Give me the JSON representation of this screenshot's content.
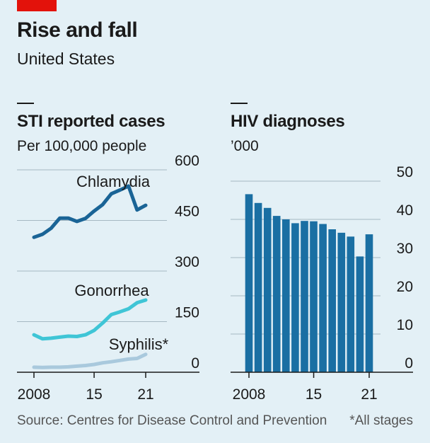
{
  "header": {
    "title": "Rise and fall",
    "subtitle": "United States"
  },
  "footer": {
    "source": "Source: Centres for Disease Control and Prevention",
    "note": "*All stages"
  },
  "colors": {
    "chlamydia": "#1a6496",
    "gonorrhea": "#3fc5d6",
    "syphilis": "#a9c9dd",
    "bars": "#1a6fa3",
    "grid": "#a5b8c3",
    "accent": "#e3120b"
  },
  "chart_data": [
    {
      "type": "line",
      "title": "STI reported cases",
      "subtitle": "Per 100,000 people",
      "x": [
        2008,
        2009,
        2010,
        2011,
        2012,
        2013,
        2014,
        2015,
        2016,
        2017,
        2018,
        2019,
        2020,
        2021
      ],
      "x_tick_labels": [
        "2008",
        "15",
        "21"
      ],
      "x_tick_values": [
        2008,
        2015,
        2021
      ],
      "ylim": [
        0,
        600
      ],
      "y_ticks": [
        0,
        150,
        300,
        450,
        600
      ],
      "y_tick_labels": [
        "0",
        "150",
        "300",
        "450",
        "600"
      ],
      "grid": true,
      "series": [
        {
          "name": "Chlamydia",
          "values": [
            400,
            409,
            427,
            457,
            457,
            447,
            456,
            478,
            497,
            529,
            540,
            552,
            481,
            495
          ]
        },
        {
          "name": "Gonorrhea",
          "values": [
            111,
            99,
            101,
            104,
            107,
            106,
            111,
            124,
            146,
            171,
            179,
            188,
            206,
            214
          ]
        },
        {
          "name": "Syphilis*",
          "values": [
            15,
            14,
            15,
            15,
            16,
            18,
            20,
            23,
            28,
            31,
            35,
            39,
            41,
            53
          ]
        }
      ]
    },
    {
      "type": "bar",
      "title": "HIV diagnoses",
      "subtitle": "’000",
      "x": [
        2008,
        2009,
        2010,
        2011,
        2012,
        2013,
        2014,
        2015,
        2016,
        2017,
        2018,
        2019,
        2020,
        2021
      ],
      "x_tick_labels": [
        "2008",
        "15",
        "21"
      ],
      "x_tick_values": [
        2008,
        2015,
        2021
      ],
      "ylim": [
        0,
        50
      ],
      "y_ticks": [
        0,
        10,
        20,
        30,
        40,
        50
      ],
      "y_tick_labels": [
        "0",
        "10",
        "20",
        "30",
        "40",
        "50"
      ],
      "grid": true,
      "values": [
        46.6,
        44.3,
        43.0,
        40.9,
        40.0,
        39.0,
        39.6,
        39.5,
        38.8,
        37.4,
        36.5,
        35.5,
        30.3,
        36.1
      ]
    }
  ]
}
